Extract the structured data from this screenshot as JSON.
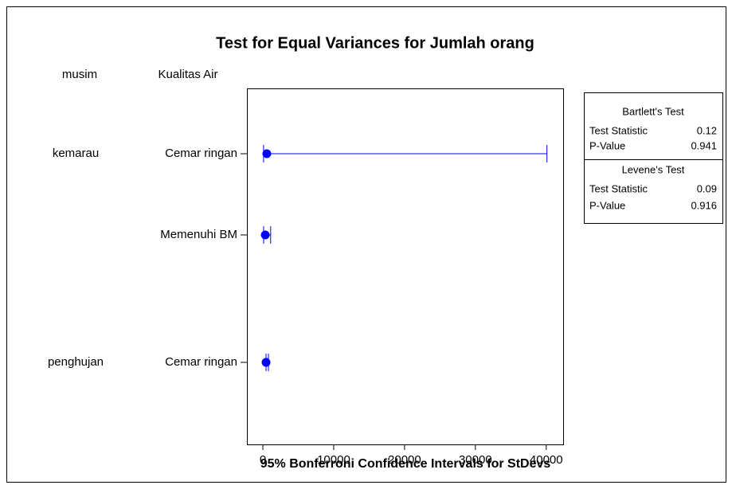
{
  "chart_data": {
    "type": "interval",
    "title": "Test for Equal Variances for Jumlah orang",
    "x_label": "95% Bonferroni Confidence Intervals for StDevs",
    "factors": [
      "musim",
      "Kualitas Air"
    ],
    "groups": [
      "kemarau",
      null,
      "penghujan"
    ],
    "categories": [
      "Cemar ringan",
      "Memenuhi BM",
      "Cemar ringan"
    ],
    "lower": [
      100,
      110,
      450
    ],
    "values": [
      560,
      340,
      450
    ],
    "upper": [
      40100,
      1100,
      790
    ],
    "color": "#0000ff",
    "xlim": [
      -2250,
      42500
    ],
    "xticks": [
      0,
      10000,
      20000,
      30000,
      40000
    ],
    "tests": [
      {
        "name": "Bartlett's Test",
        "rows": [
          {
            "label": "Test Statistic",
            "value": 0.12
          },
          {
            "label": "P-Value",
            "value": 0.941
          }
        ]
      },
      {
        "name": "Levene's Test",
        "rows": [
          {
            "label": "Test Statistic",
            "value": 0.09
          },
          {
            "label": "P-Value",
            "value": 0.916
          }
        ]
      }
    ]
  }
}
